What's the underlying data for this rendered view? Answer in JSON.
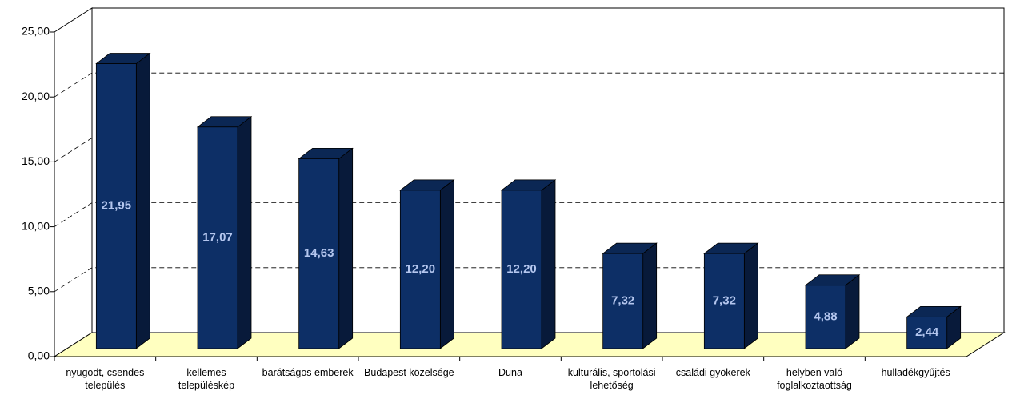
{
  "chart_data": {
    "type": "bar3d",
    "categories": [
      "nyugodt, csendes település",
      "kellemes településkép",
      "barátságos emberek",
      "Budapest közelsége",
      "Duna",
      "kulturális, sportolási lehetőség",
      "családi gyökerek",
      "helyben való foglalkoztaottság",
      "hulladékgyűjtés"
    ],
    "values": [
      21.95,
      17.07,
      14.63,
      12.2,
      12.2,
      7.32,
      7.32,
      4.88,
      2.44
    ],
    "value_labels": [
      "21,95",
      "17,07",
      "14,63",
      "12,20",
      "12,20",
      "7,32",
      "7,32",
      "4,88",
      "2,44"
    ],
    "color": "#0d2f66",
    "ylim": [
      0,
      25
    ],
    "yticks": [
      {
        "value": 0,
        "label": "0,00"
      },
      {
        "value": 5,
        "label": "5,00"
      },
      {
        "value": 10,
        "label": "10,00"
      },
      {
        "value": 15,
        "label": "15,00"
      },
      {
        "value": 20,
        "label": "20,00"
      },
      {
        "value": 25,
        "label": "25,00"
      }
    ],
    "grid": true
  }
}
